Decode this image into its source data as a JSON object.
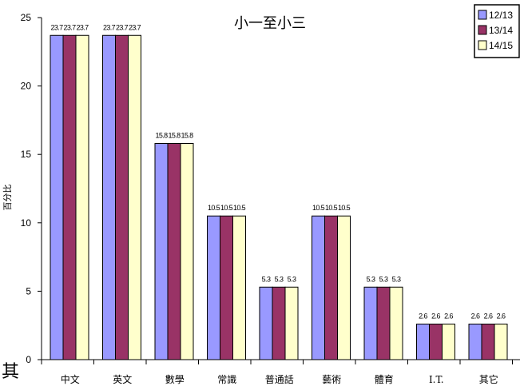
{
  "chart_data": {
    "type": "bar",
    "title": "小一至小三",
    "xlabel": "",
    "ylabel": "百分比",
    "ylim": [
      0,
      25
    ],
    "yticks": [
      0,
      5,
      10,
      15,
      20,
      25
    ],
    "categories": [
      "中文",
      "英文",
      "數學",
      "常識",
      "普通話",
      "藝術",
      "體育",
      "I.T.",
      "其它"
    ],
    "series": [
      {
        "name": "12/13",
        "color": "#9999ff",
        "values": [
          23.7,
          23.7,
          15.8,
          10.5,
          5.3,
          10.5,
          5.3,
          2.6,
          2.6
        ]
      },
      {
        "name": "13/14",
        "color": "#993366",
        "values": [
          23.7,
          23.7,
          15.8,
          10.5,
          5.3,
          10.5,
          5.3,
          2.6,
          2.6
        ]
      },
      {
        "name": "14/15",
        "color": "#ffffcc",
        "values": [
          23.7,
          23.7,
          15.8,
          10.5,
          5.3,
          10.5,
          5.3,
          2.6,
          2.6
        ]
      }
    ],
    "data_labels": [
      [
        "23.7",
        "23.7",
        "23.7"
      ],
      [
        "23.7",
        "23.7",
        "23.7"
      ],
      [
        "15.8",
        "15.8",
        "15.8"
      ],
      [
        "10.5",
        "10.5",
        "10.5"
      ],
      [
        "5.3",
        "5.3",
        "5.3"
      ],
      [
        "10.5",
        "10.5",
        "10.5"
      ],
      [
        "5.3",
        "5.3",
        "5.3"
      ],
      [
        "2.6",
        "2.6",
        "2.6"
      ],
      [
        "2.6",
        "2.6",
        "2.6"
      ]
    ],
    "grid": false,
    "legend_position": "top-right"
  },
  "corner_glyph": "其"
}
